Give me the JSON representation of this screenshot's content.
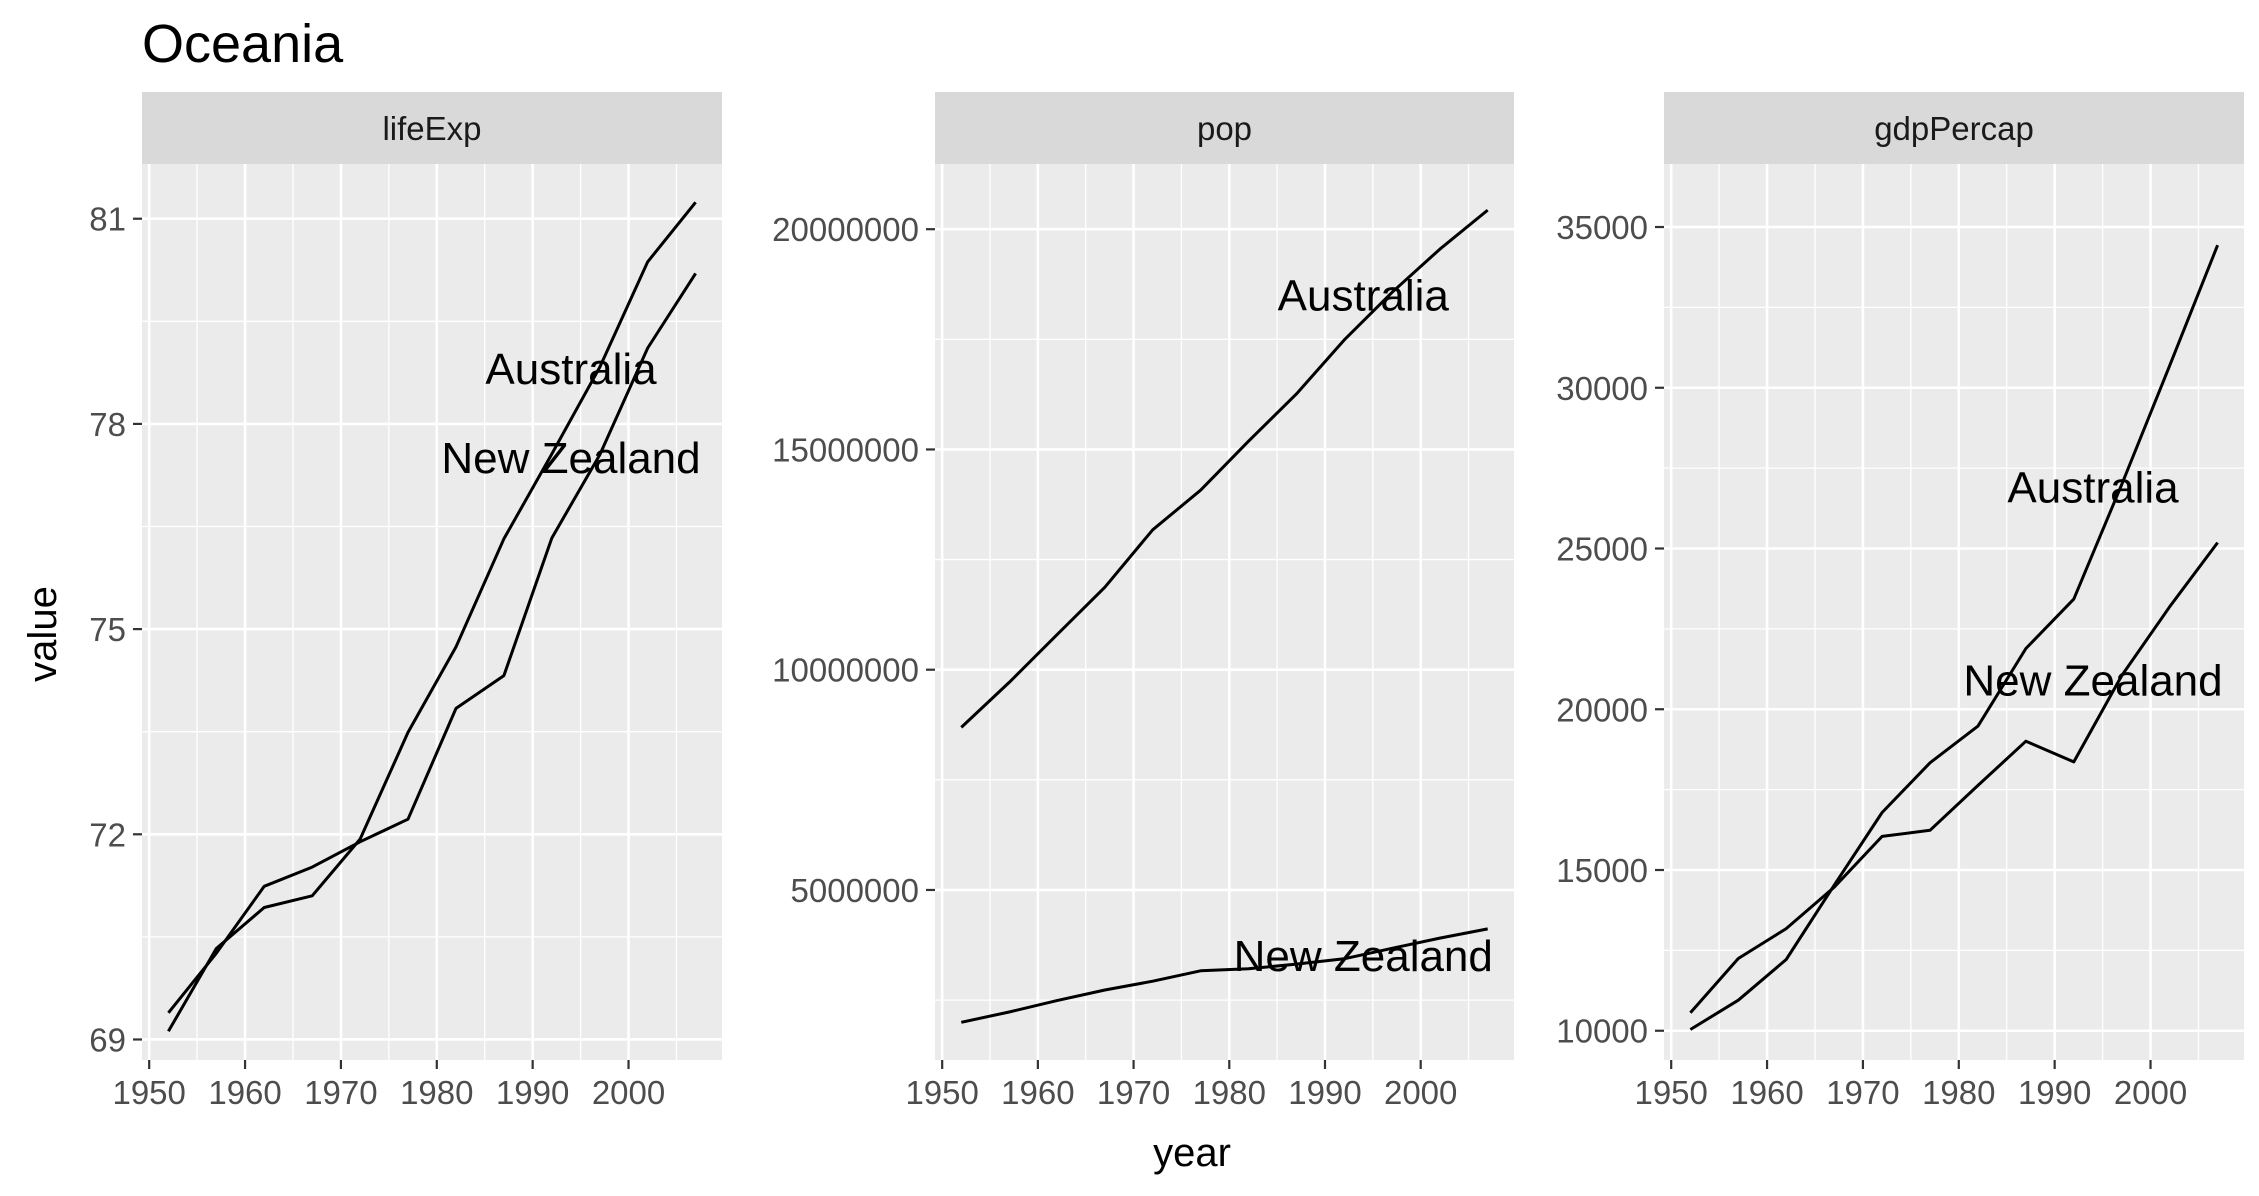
{
  "title": "Oceania",
  "xlabel": "year",
  "ylabel": "value",
  "chart_data": [
    {
      "type": "line",
      "facet": "lifeExp",
      "x": [
        1952,
        1957,
        1962,
        1967,
        1972,
        1977,
        1982,
        1987,
        1992,
        1997,
        2002,
        2007
      ],
      "xticks": [
        "1950",
        "1960",
        "1970",
        "1980",
        "1990",
        "2000"
      ],
      "xlim": [
        1949.25,
        2009.75
      ],
      "yticks": [
        "69",
        "72",
        "75",
        "78",
        "81"
      ],
      "ylim": [
        68.7,
        81.8
      ],
      "grid": true,
      "series": [
        {
          "name": "Australia",
          "values": [
            69.12,
            70.33,
            70.93,
            71.1,
            71.93,
            73.49,
            74.74,
            76.32,
            77.56,
            78.83,
            80.37,
            81.24
          ]
        },
        {
          "name": "New Zealand",
          "values": [
            69.39,
            70.26,
            71.24,
            71.52,
            71.89,
            72.22,
            73.84,
            74.32,
            76.33,
            77.55,
            79.11,
            80.2
          ]
        }
      ],
      "annotations": [
        {
          "text": "Australia",
          "x": 1994,
          "y": 78.8
        },
        {
          "text": "New Zealand",
          "x": 1994,
          "y": 77.5
        }
      ]
    },
    {
      "type": "line",
      "facet": "pop",
      "x": [
        1952,
        1957,
        1962,
        1967,
        1972,
        1977,
        1982,
        1987,
        1992,
        1997,
        2002,
        2007
      ],
      "xticks": [
        "1950",
        "1960",
        "1970",
        "1980",
        "1990",
        "2000"
      ],
      "xlim": [
        1949.25,
        2009.75
      ],
      "yticks": [
        "5000000",
        "10000000",
        "15000000",
        "20000000"
      ],
      "ylim": [
        1140000,
        21480000
      ],
      "grid": true,
      "series": [
        {
          "name": "Australia",
          "values": [
            8691212,
            9712569,
            10794968,
            11872264,
            13177000,
            14074100,
            15184200,
            16257249,
            17481977,
            18565243,
            19546792,
            20434176
          ]
        },
        {
          "name": "New Zealand",
          "values": [
            1994794,
            2229407,
            2488550,
            2728150,
            2929100,
            3164900,
            3210650,
            3317166,
            3437674,
            3676187,
            3908037,
            4115771
          ]
        }
      ],
      "annotations": [
        {
          "text": "Australia",
          "x": 1994,
          "y": 18500000
        },
        {
          "text": "New Zealand",
          "x": 1994,
          "y": 3500000
        }
      ]
    },
    {
      "type": "line",
      "facet": "gdpPercap",
      "x": [
        1952,
        1957,
        1962,
        1967,
        1972,
        1977,
        1982,
        1987,
        1992,
        1997,
        2002,
        2007
      ],
      "xticks": [
        "1950",
        "1960",
        "1970",
        "1980",
        "1990",
        "2000"
      ],
      "xlim": [
        1949.25,
        2009.75
      ],
      "yticks": [
        "10000",
        "15000",
        "20000",
        "25000",
        "30000",
        "35000"
      ],
      "ylim": [
        9090,
        36960
      ],
      "grid": true,
      "series": [
        {
          "name": "Australia",
          "values": [
            10040,
            10950,
            12217,
            14526,
            16789,
            18334,
            19477,
            21889,
            23425,
            26998,
            30688,
            34435
          ]
        },
        {
          "name": "New Zealand",
          "values": [
            10557,
            12247,
            13176,
            14464,
            16046,
            16234,
            17632,
            19007,
            18363,
            21050,
            23190,
            25185
          ]
        }
      ],
      "annotations": [
        {
          "text": "Australia",
          "x": 1994,
          "y": 26900
        },
        {
          "text": "New Zealand",
          "x": 1994,
          "y": 20900
        }
      ]
    }
  ]
}
